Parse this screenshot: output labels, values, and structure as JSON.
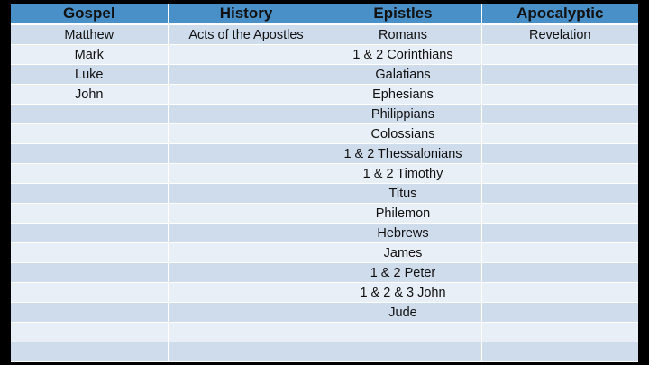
{
  "table": {
    "headers": [
      "Gospel",
      "History",
      "Epistles",
      "Apocalyptic"
    ],
    "rows": [
      [
        "Matthew",
        "Acts of the Apostles",
        "Romans",
        "Revelation"
      ],
      [
        "Mark",
        "",
        "1 & 2 Corinthians",
        ""
      ],
      [
        "Luke",
        "",
        "Galatians",
        ""
      ],
      [
        "John",
        "",
        "Ephesians",
        ""
      ],
      [
        "",
        "",
        "Philippians",
        ""
      ],
      [
        "",
        "",
        "Colossians",
        ""
      ],
      [
        "",
        "",
        "1 & 2 Thessalonians",
        ""
      ],
      [
        "",
        "",
        "1 & 2 Timothy",
        ""
      ],
      [
        "",
        "",
        "Titus",
        ""
      ],
      [
        "",
        "",
        "Philemon",
        ""
      ],
      [
        "",
        "",
        "Hebrews",
        ""
      ],
      [
        "",
        "",
        "James",
        ""
      ],
      [
        "",
        "",
        "1 & 2 Peter",
        ""
      ],
      [
        "",
        "",
        "1 & 2 & 3 John",
        ""
      ],
      [
        "",
        "",
        "Jude",
        ""
      ],
      [
        "",
        "",
        "",
        ""
      ],
      [
        "",
        "",
        "",
        ""
      ]
    ]
  },
  "colors": {
    "header": "#4a90c8",
    "row_odd": "#cfdcec",
    "row_even": "#e9eff7",
    "background": "#000000"
  }
}
